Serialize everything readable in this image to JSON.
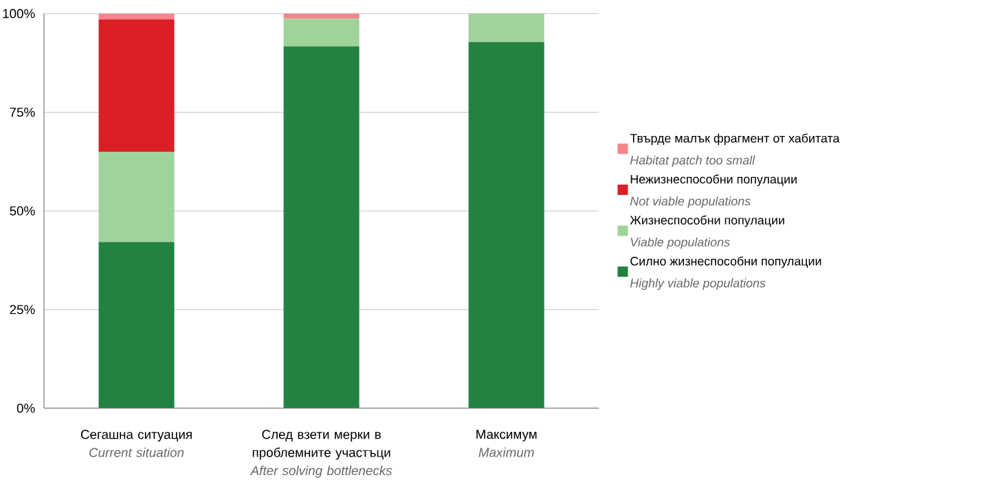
{
  "chart_data": {
    "type": "bar",
    "stacked": true,
    "categories": [
      "Сегашна ситуация\n*Current situation*",
      "След взети мерки в проблемните участъци\n*After solving bottlenecks*",
      "Максимум\n*Maximum*"
    ],
    "series": [
      {
        "name": "Силно жизнеспособни популации\n*Highly viable populations*",
        "color": "#228241",
        "values": [
          42.1,
          91.7,
          92.8
        ]
      },
      {
        "name": "Жизнеспособни популации\n*Viable populations*",
        "color": "#9fd39a",
        "values": [
          22.9,
          7.0,
          7.2
        ]
      },
      {
        "name": "Нежизнеспособни популации\n*Not viable populations*",
        "color": "#da1f26",
        "values": [
          33.5,
          0,
          0
        ]
      },
      {
        "name": "Твърде малък фрагмент от хабитата\n*Habitat patch too small*",
        "color": "#f5868d",
        "values": [
          1.5,
          1.3,
          0
        ]
      }
    ],
    "ylim": [
      0,
      100
    ],
    "yticks": [
      {
        "value": 0,
        "label": "0%"
      },
      {
        "value": 25,
        "label": "25%"
      },
      {
        "value": 50,
        "label": "50%"
      },
      {
        "value": 75,
        "label": "75%"
      },
      {
        "value": 100,
        "label": "100%"
      }
    ],
    "grid": "y",
    "legend": "right"
  }
}
